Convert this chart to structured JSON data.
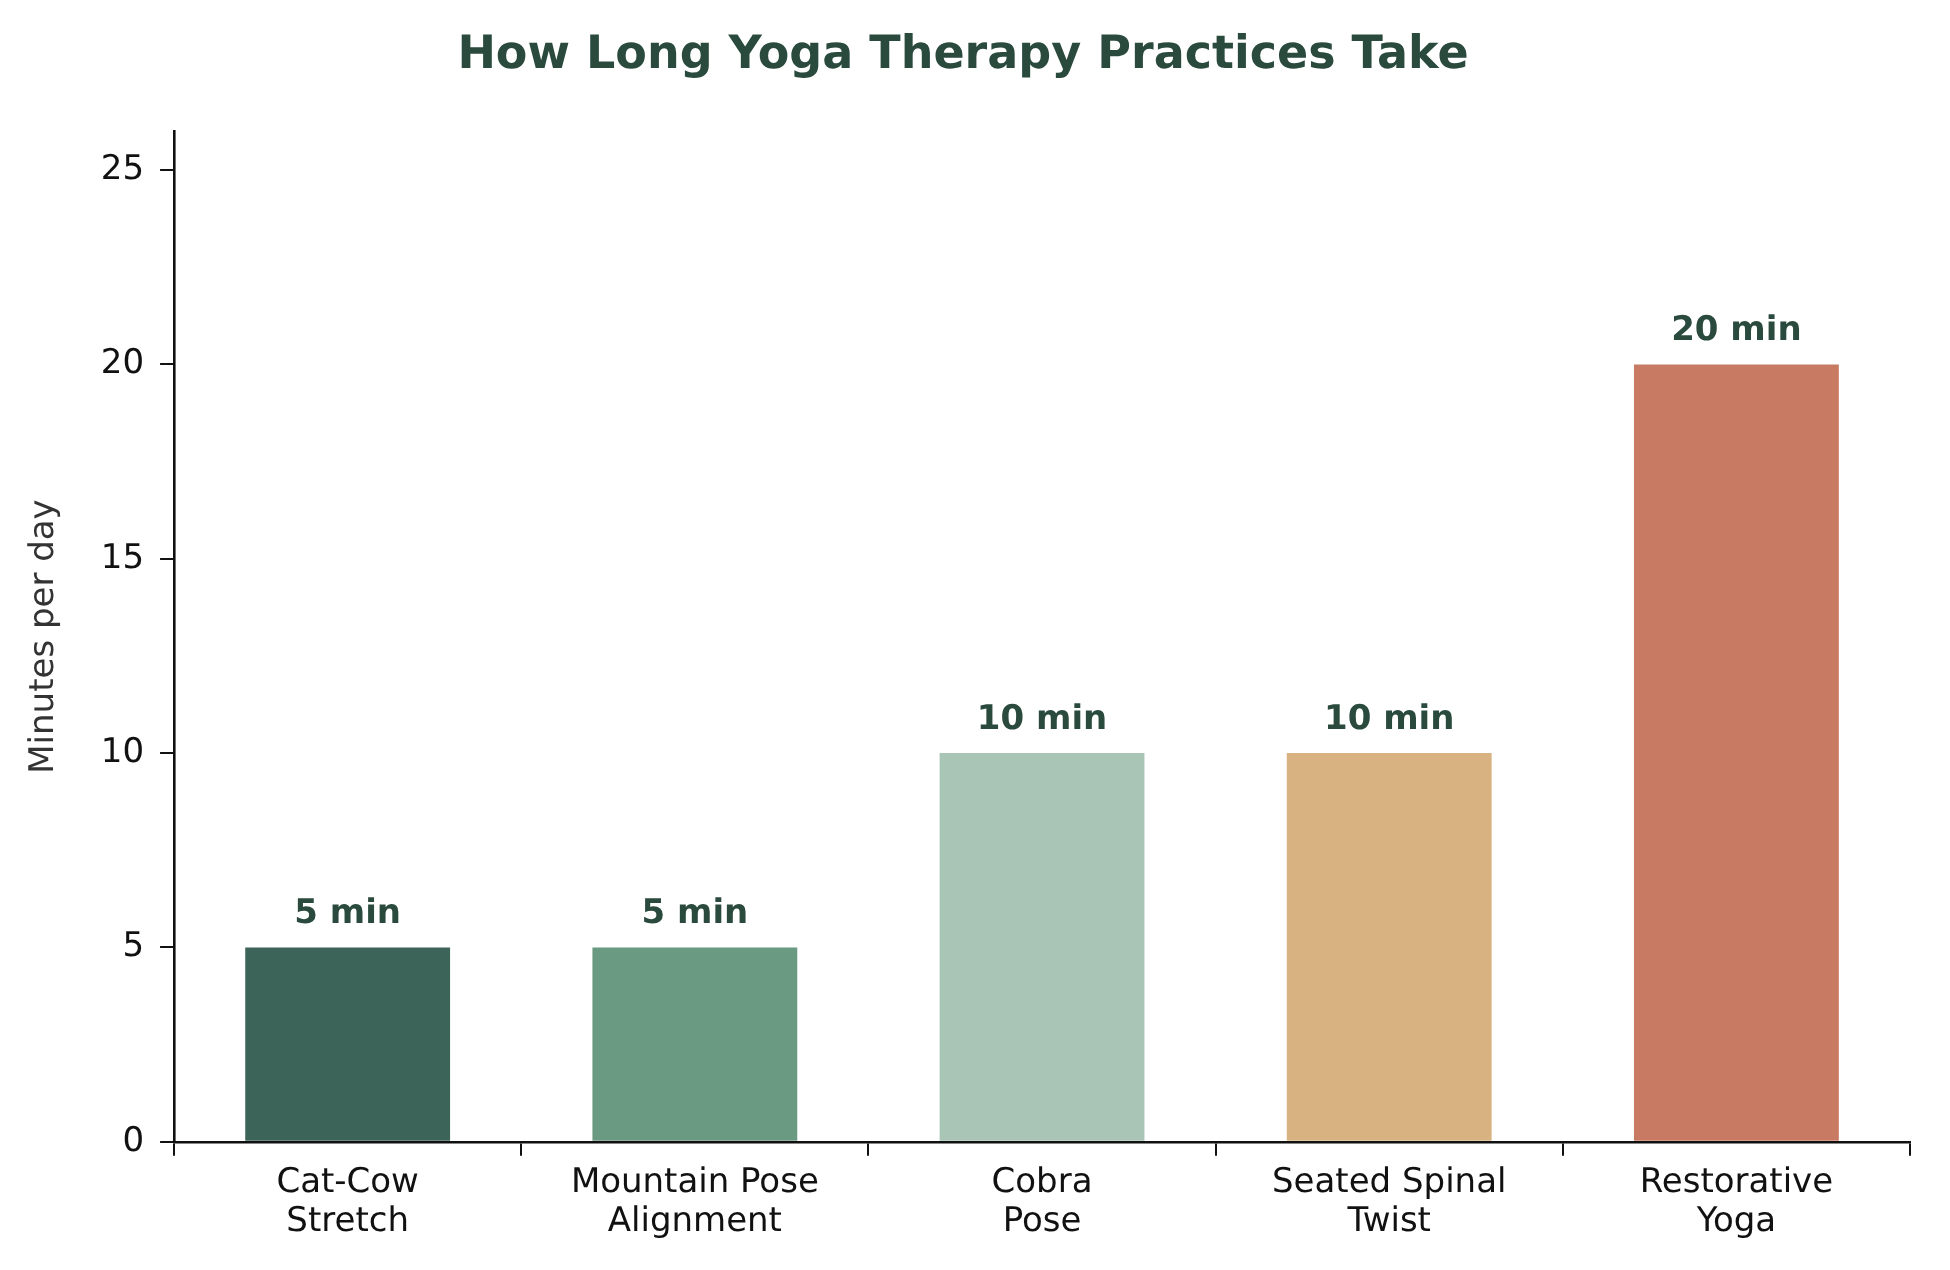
{
  "chart_data": {
    "type": "bar",
    "title": "How Long Yoga Therapy Practices Take",
    "ylabel": "Minutes per day",
    "categories": [
      "Cat-Cow Stretch",
      "Mountain Pose Alignment",
      "Cobra Pose",
      "Seated Spinal Twist",
      "Restorative Yoga"
    ],
    "values": [
      5,
      5,
      10,
      10,
      20
    ],
    "colors": [
      "#3d6459",
      "#6b9a82",
      "#a9c5b5",
      "#d9b282",
      "#c87a62"
    ],
    "value_labels": [
      "5 min",
      "5 min",
      "10 min",
      "10 min",
      "20 min"
    ],
    "ylim": [
      0,
      26
    ],
    "yticks": [
      0,
      5,
      10,
      15,
      20,
      25
    ],
    "grid": false,
    "legend": false
  }
}
